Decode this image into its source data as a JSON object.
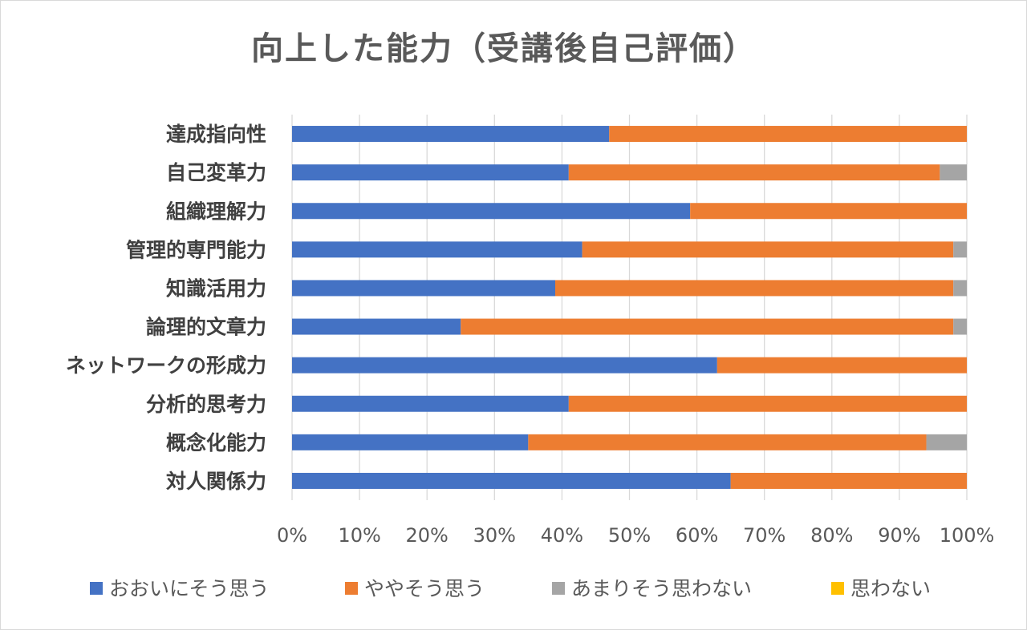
{
  "chart_data": {
    "type": "bar",
    "orientation": "horizontal",
    "stacked": "percent",
    "title": "向上した能力（受講後自己評価）",
    "categories": [
      "達成指向性",
      "自己変革力",
      "組織理解力",
      "管理的専門能力",
      "知識活用力",
      "論理的文章力",
      "ネットワークの形成力",
      "分析的思考力",
      "概念化能力",
      "対人関係力"
    ],
    "series": [
      {
        "name": "おおいにそう思う",
        "color": "#4472C4",
        "values": [
          47,
          41,
          59,
          43,
          39,
          25,
          63,
          41,
          35,
          65
        ]
      },
      {
        "name": "ややそう思う",
        "color": "#ED7D31",
        "values": [
          53,
          55,
          41,
          55,
          59,
          73,
          37,
          59,
          59,
          35
        ]
      },
      {
        "name": "あまりそう思わない",
        "color": "#A5A5A5",
        "values": [
          0,
          4,
          0,
          2,
          2,
          2,
          0,
          0,
          6,
          0
        ]
      },
      {
        "name": "思わない",
        "color": "#FFC000",
        "values": [
          0,
          0,
          0,
          0,
          0,
          0,
          0,
          0,
          0,
          0
        ]
      }
    ],
    "xlim": [
      0,
      100
    ],
    "x_ticks": [
      "0%",
      "10%",
      "20%",
      "30%",
      "40%",
      "50%",
      "60%",
      "70%",
      "80%",
      "90%",
      "100%"
    ],
    "grid": "vertical",
    "legend_position": "bottom"
  }
}
